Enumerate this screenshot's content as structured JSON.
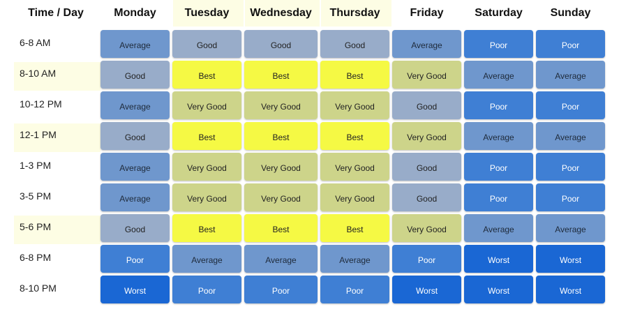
{
  "header": {
    "corner": "Time / Day",
    "days": [
      "Monday",
      "Tuesday",
      "Wednesday",
      "Thursday",
      "Friday",
      "Saturday",
      "Sunday"
    ],
    "highlighted_days": [
      "Tuesday",
      "Wednesday",
      "Thursday"
    ]
  },
  "rows": [
    {
      "time": "6-8 AM",
      "highlighted": false,
      "cells": [
        "Average",
        "Good",
        "Good",
        "Good",
        "Average",
        "Poor",
        "Poor"
      ]
    },
    {
      "time": "8-10 AM",
      "highlighted": true,
      "cells": [
        "Good",
        "Best",
        "Best",
        "Best",
        "Very Good",
        "Average",
        "Average"
      ]
    },
    {
      "time": "10-12 PM",
      "highlighted": false,
      "cells": [
        "Average",
        "Very Good",
        "Very Good",
        "Very Good",
        "Good",
        "Poor",
        "Poor"
      ]
    },
    {
      "time": "12-1 PM",
      "highlighted": true,
      "cells": [
        "Good",
        "Best",
        "Best",
        "Best",
        "Very Good",
        "Average",
        "Average"
      ]
    },
    {
      "time": "1-3 PM",
      "highlighted": false,
      "cells": [
        "Average",
        "Very Good",
        "Very Good",
        "Very Good",
        "Good",
        "Poor",
        "Poor"
      ]
    },
    {
      "time": "3-5 PM",
      "highlighted": false,
      "cells": [
        "Average",
        "Very Good",
        "Very Good",
        "Very Good",
        "Good",
        "Poor",
        "Poor"
      ]
    },
    {
      "time": "5-6 PM",
      "highlighted": true,
      "cells": [
        "Good",
        "Best",
        "Best",
        "Best",
        "Very Good",
        "Average",
        "Average"
      ]
    },
    {
      "time": "6-8 PM",
      "highlighted": false,
      "cells": [
        "Poor",
        "Average",
        "Average",
        "Average",
        "Poor",
        "Worst",
        "Worst"
      ]
    },
    {
      "time": "8-10 PM",
      "highlighted": false,
      "cells": [
        "Worst",
        "Poor",
        "Poor",
        "Poor",
        "Worst",
        "Worst",
        "Worst"
      ]
    }
  ],
  "rating_styles": {
    "Best": {
      "bg": "#f5f944",
      "fg": "#222222"
    },
    "Very Good": {
      "bg": "#cdd48a",
      "fg": "#222222"
    },
    "Good": {
      "bg": "#98acc9",
      "fg": "#222222"
    },
    "Average": {
      "bg": "#6f97cd",
      "fg": "#1e2a3a"
    },
    "Poor": {
      "bg": "#3f7fd4",
      "fg": "#ffffff"
    },
    "Worst": {
      "bg": "#1a67d4",
      "fg": "#ffffff"
    }
  },
  "highlight_color": "#fdfde4"
}
